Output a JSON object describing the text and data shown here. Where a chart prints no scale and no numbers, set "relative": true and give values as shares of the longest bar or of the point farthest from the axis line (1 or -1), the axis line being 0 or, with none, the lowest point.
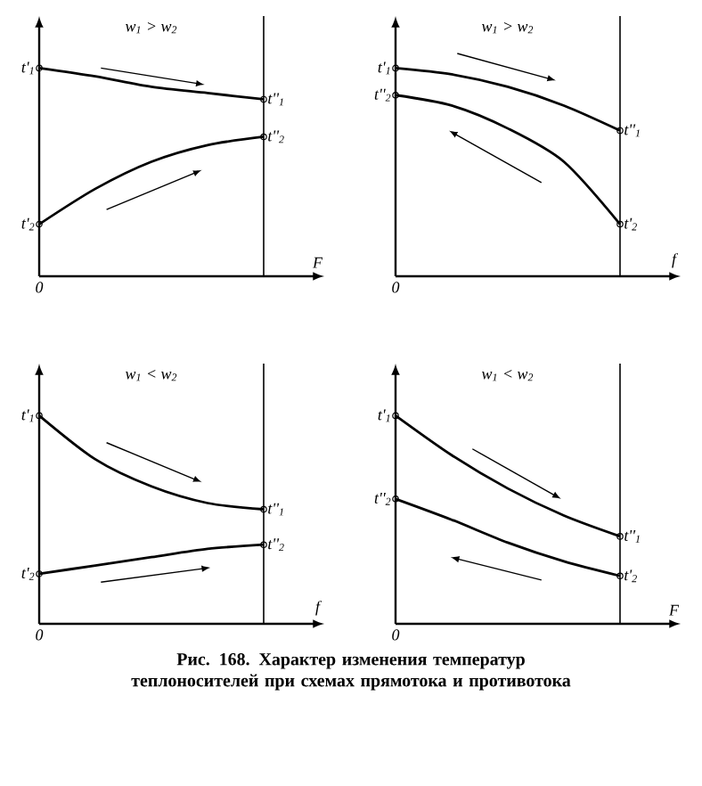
{
  "chart_data": [
    {
      "type": "line",
      "relative": true,
      "subtitle": "w$_{1}$ > w$_{2}$",
      "xlabel": "F",
      "categories": [
        null,
        null,
        null,
        null,
        null
      ],
      "series": [
        {
          "color": "#000000",
          "values": [
            1,
            0.96,
            0.91,
            0.88,
            0.85
          ]
        },
        {
          "color": "#000000",
          "values": [
            0.25,
            0.42,
            0.55,
            0.63,
            0.67
          ]
        }
      ],
      "annotations": [
        "t'$_{1}$",
        "t''$_{1}$",
        "t'$_{2}$",
        "t''$_{2}$",
        "0",
        "Рис. 168. Характер изменения температур теплоносителей при схемах прямотока и противотока"
      ]
    },
    {
      "type": "line",
      "relative": true,
      "subtitle": "w$_{1}$ > w$_{2}$",
      "xlabel": "f",
      "categories": [
        null,
        null,
        null,
        null,
        null
      ],
      "series": [
        {
          "color": "#000000",
          "values": [
            1,
            0.97,
            0.91,
            0.82,
            0.7
          ]
        },
        {
          "color": "#000000",
          "values": [
            0.87,
            0.82,
            0.71,
            0.55,
            0.25
          ]
        }
      ],
      "annotations": [
        "t'$_{1}$",
        "t''$_{1}$",
        "t''$_{2}$",
        "t'$_{2}$",
        "0"
      ]
    },
    {
      "type": "line",
      "relative": true,
      "subtitle": "w$_{1}$ < w$_{2}$",
      "xlabel": "f",
      "categories": [
        null,
        null,
        null,
        null,
        null
      ],
      "series": [
        {
          "color": "#000000",
          "values": [
            1,
            0.79,
            0.66,
            0.58,
            0.55
          ]
        },
        {
          "color": "#000000",
          "values": [
            0.24,
            0.28,
            0.32,
            0.36,
            0.38
          ]
        }
      ],
      "annotations": [
        "t'$_{1}$",
        "t''$_{1}$",
        "t'$_{2}$",
        "t''$_{2}$",
        "0"
      ]
    },
    {
      "type": "line",
      "relative": true,
      "subtitle": "w$_{1}$ < w$_{2}$",
      "xlabel": "F",
      "categories": [
        null,
        null,
        null,
        null,
        null
      ],
      "series": [
        {
          "color": "#000000",
          "values": [
            1,
            0.81,
            0.65,
            0.52,
            0.42
          ]
        },
        {
          "color": "#000000",
          "values": [
            0.6,
            0.5,
            0.39,
            0.3,
            0.23
          ]
        }
      ],
      "annotations": [
        "t'$_{1}$",
        "t''$_{1}$",
        "t''$_{2}$",
        "t'$_{2}$",
        "0"
      ]
    }
  ]
}
